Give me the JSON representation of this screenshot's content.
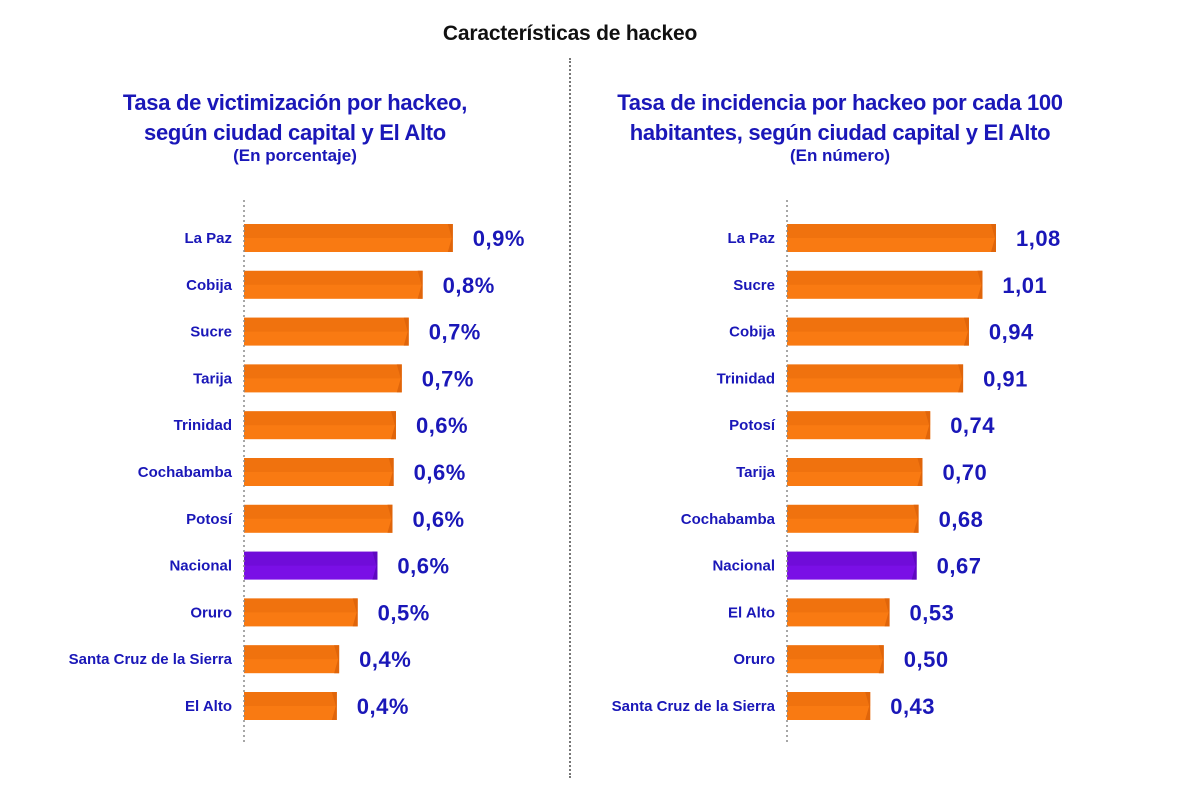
{
  "page": {
    "title": "Características de hackeo"
  },
  "chart_data": [
    {
      "type": "bar",
      "orientation": "horizontal",
      "title": "Tasa de victimización por hackeo, según ciudad capital y El Alto",
      "title_lines": [
        "Tasa de victimización por hackeo,",
        "según ciudad capital y El Alto"
      ],
      "subtitle": "(En porcentaje)",
      "xlabel": "",
      "ylabel": "",
      "unit": "%",
      "categories": [
        "La Paz",
        "Cobija",
        "Sucre",
        "Tarija",
        "Trinidad",
        "Cochabamba",
        "Potosí",
        "Nacional",
        "Oruro",
        "Santa Cruz de la Sierra",
        "El Alto"
      ],
      "values": [
        0.9,
        0.8,
        0.7,
        0.7,
        0.6,
        0.6,
        0.6,
        0.6,
        0.5,
        0.4,
        0.4
      ],
      "bar_values": [
        0.9,
        0.77,
        0.71,
        0.68,
        0.655,
        0.645,
        0.64,
        0.575,
        0.49,
        0.41,
        0.4
      ],
      "bar_values_note": "Estimated from measured bar lengths (not labels printed on the chart); used only to size the bars.",
      "value_labels": [
        "0,9%",
        "0,8%",
        "0,7%",
        "0,7%",
        "0,6%",
        "0,6%",
        "0,6%",
        "0,6%",
        "0,5%",
        "0,4%",
        "0,4%"
      ],
      "highlight_category": "Nacional",
      "colors": {
        "bar": "#f97a12",
        "bar_shade": "#e0650a",
        "highlight": "#7a0fe6",
        "highlight_shade": "#5e08c0",
        "text": "#1a17b8"
      },
      "grid": false,
      "legend": "none"
    },
    {
      "type": "bar",
      "orientation": "horizontal",
      "title": "Tasa de incidencia por hackeo por cada 100 habitantes, según ciudad capital y El Alto",
      "title_lines": [
        "Tasa de incidencia por hackeo por cada 100",
        "habitantes, según ciudad capital y El Alto"
      ],
      "subtitle": "(En número)",
      "xlabel": "",
      "ylabel": "",
      "unit": "",
      "categories": [
        "La Paz",
        "Sucre",
        "Cobija",
        "Trinidad",
        "Potosí",
        "Tarija",
        "Cochabamba",
        "Nacional",
        "El Alto",
        "Oruro",
        "Santa Cruz de la Sierra"
      ],
      "values": [
        1.08,
        1.01,
        0.94,
        0.91,
        0.74,
        0.7,
        0.68,
        0.67,
        0.53,
        0.5,
        0.43
      ],
      "value_labels": [
        "1,08",
        "1,01",
        "0,94",
        "0,91",
        "0,74",
        "0,70",
        "0,68",
        "0,67",
        "0,53",
        "0,50",
        "0,43"
      ],
      "highlight_category": "Nacional",
      "colors": {
        "bar": "#f97a12",
        "bar_shade": "#e0650a",
        "highlight": "#7a0fe6",
        "highlight_shade": "#5e08c0",
        "text": "#1a17b8"
      },
      "grid": false,
      "legend": "none"
    }
  ]
}
